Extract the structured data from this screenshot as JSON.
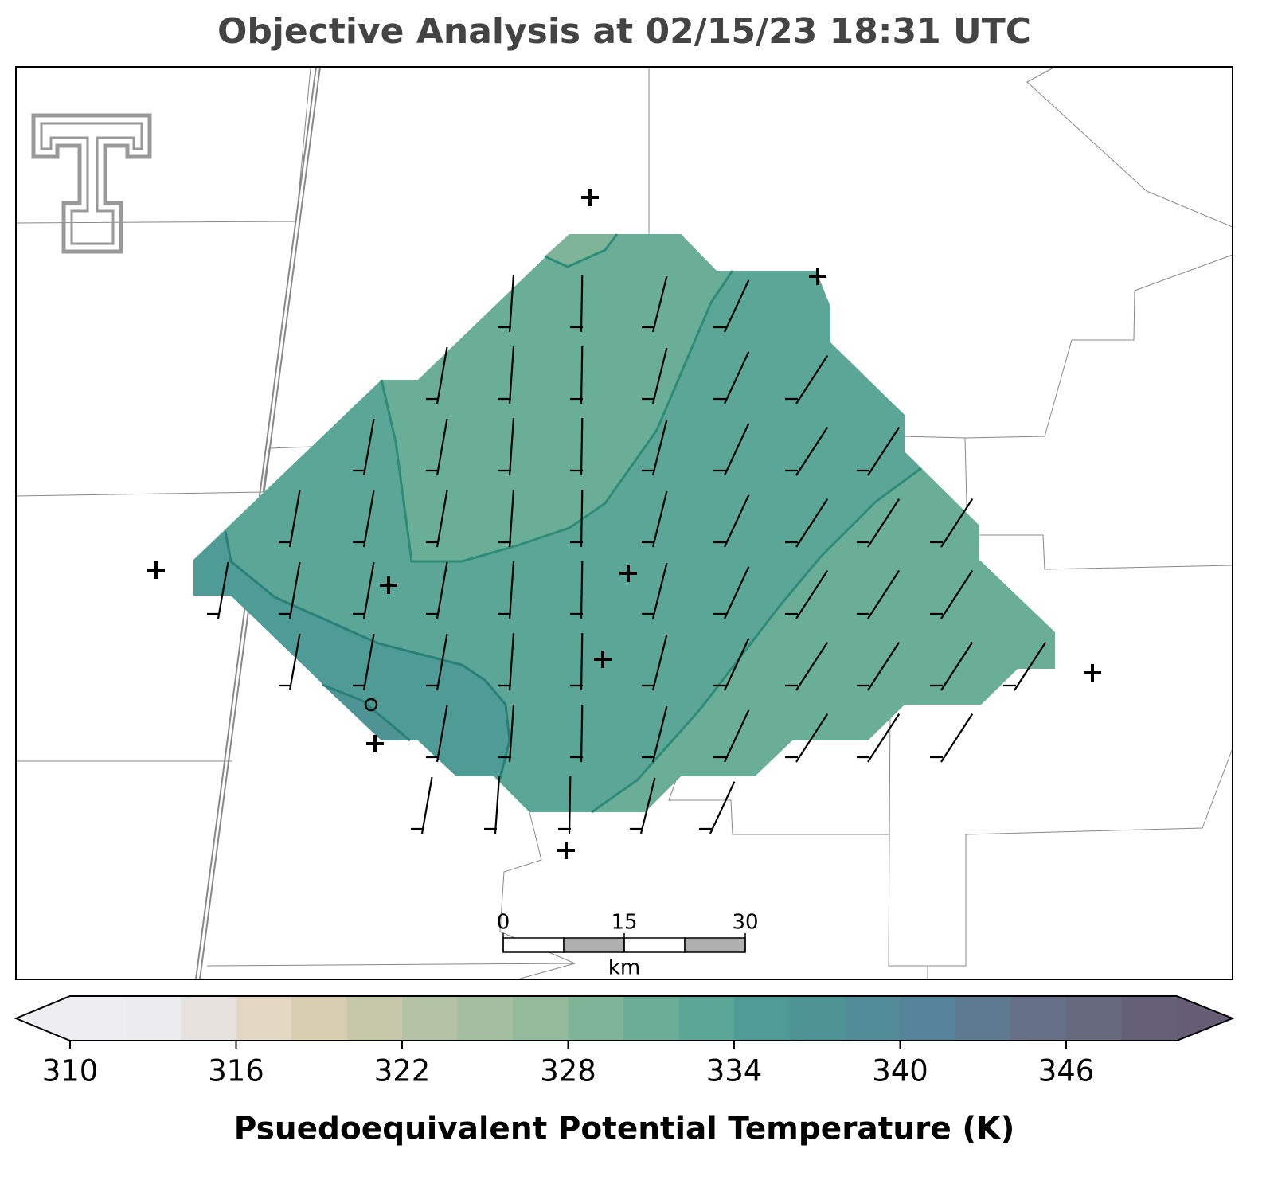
{
  "title": "Objective Analysis at 02/15/23 18:31 UTC",
  "colorbar": {
    "label": "Psuedoequivalent Potential Temperature (K)",
    "bounds": [
      310,
      312,
      314,
      316,
      318,
      320,
      322,
      324,
      326,
      328,
      330,
      332,
      334,
      336,
      338,
      340,
      342,
      344,
      346,
      348,
      350
    ],
    "colors": [
      "#eeeef2",
      "#ecebed",
      "#e8e2df",
      "#e4d8c4",
      "#d8cfb2",
      "#c6c9a9",
      "#b4c3a6",
      "#a3bfa0",
      "#93ba9b",
      "#80b499",
      "#6bae98",
      "#5ba696",
      "#4f9c96",
      "#4e9495",
      "#518c98",
      "#57839a",
      "#5e7a90",
      "#656f86",
      "#67697f",
      "#666077"
    ],
    "extend_low_color": "#eeeef2",
    "extend_high_color": "#665d75",
    "ticks": [
      310,
      316,
      322,
      328,
      334,
      340,
      346
    ]
  },
  "scale_bar": {
    "ticks": [
      0,
      15,
      30
    ],
    "unit": "km"
  }
}
